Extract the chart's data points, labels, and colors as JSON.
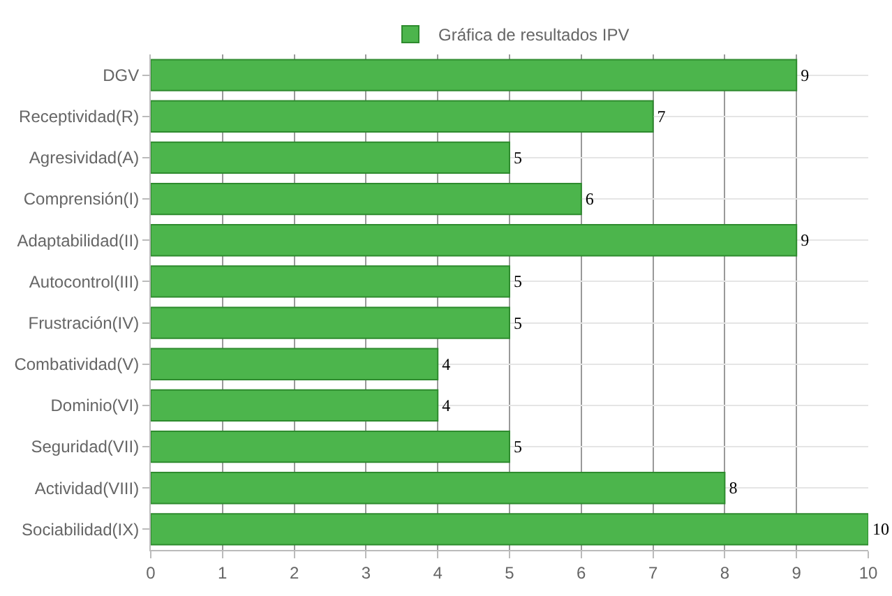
{
  "chart_data": {
    "type": "bar",
    "orientation": "horizontal",
    "categories": [
      "DGV",
      "Receptividad(R)",
      "Agresividad(A)",
      "Comprensión(I)",
      "Adaptabilidad(II)",
      "Autocontrol(III)",
      "Frustración(IV)",
      "Combatividad(V)",
      "Dominio(VI)",
      "Seguridad(VII)",
      "Actividad(VIII)",
      "Sociabilidad(IX)"
    ],
    "series": [
      {
        "name": "Gráfica de resultados IPV",
        "color": "#4cb54c",
        "values": [
          9,
          7,
          5,
          6,
          9,
          5,
          5,
          4,
          4,
          5,
          8,
          10
        ]
      }
    ],
    "xlim": [
      0,
      10
    ],
    "xticks": [
      0,
      1,
      2,
      3,
      4,
      5,
      6,
      7,
      8,
      9,
      10
    ],
    "data_labels": true,
    "grid": true,
    "legend": "top"
  }
}
